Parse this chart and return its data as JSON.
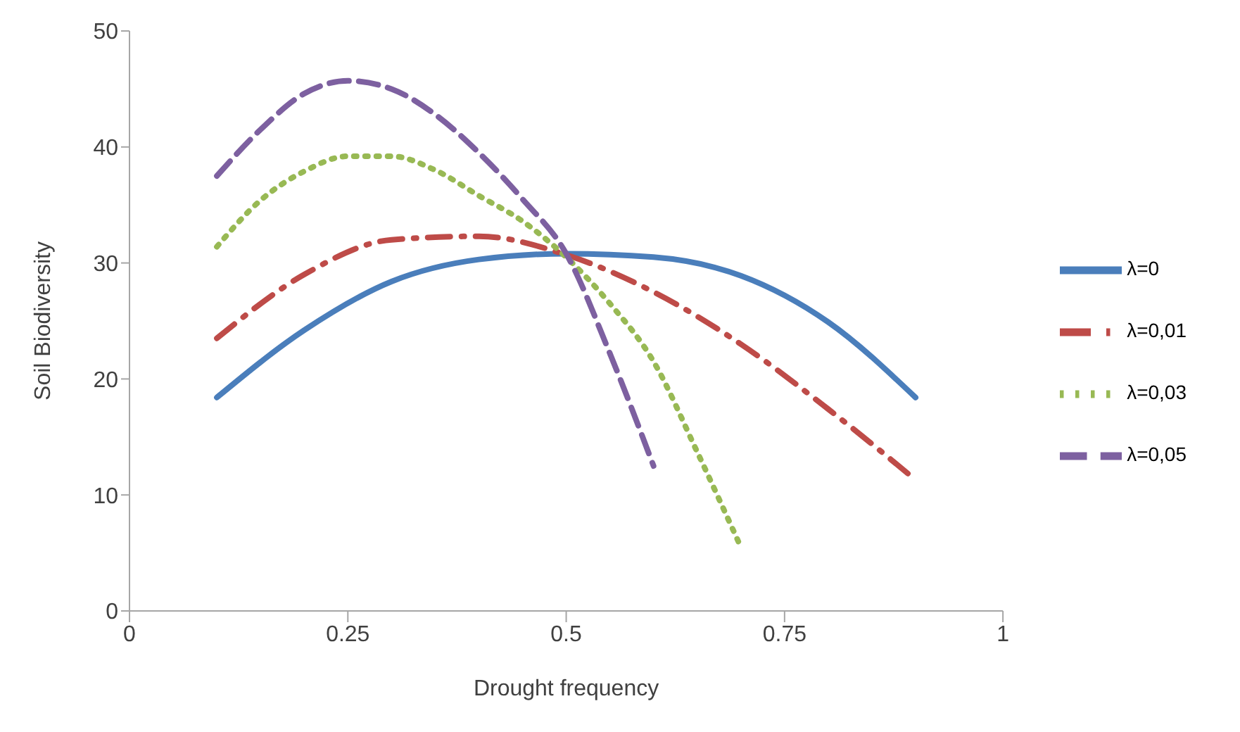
{
  "chart_data": {
    "type": "line",
    "xlabel": "Drought frequency",
    "ylabel": "Soil Biodiversity",
    "xlim": [
      0,
      1
    ],
    "xticks": [
      0,
      0.25,
      0.5,
      0.75,
      1
    ],
    "ylim": [
      0,
      50
    ],
    "yticks": [
      0,
      10,
      20,
      30,
      40,
      50
    ],
    "grid": false,
    "legend": "right",
    "marker": "none",
    "series": [
      {
        "name": "λ=0",
        "color": "#4a7ebb",
        "line_style": "solid",
        "x": [
          0.1,
          0.2,
          0.3,
          0.4,
          0.5,
          0.6,
          0.7,
          0.8,
          0.9
        ],
        "values": [
          18.4,
          24.2,
          28.4,
          30.3,
          30.8,
          30.5,
          28.9,
          24.9,
          18.4
        ]
      },
      {
        "name": "λ=0,01",
        "color": "#be4b48",
        "line_style": "dashdot",
        "x": [
          0.1,
          0.2,
          0.3,
          0.4,
          0.5,
          0.6,
          0.7,
          0.8,
          0.9
        ],
        "values": [
          23.5,
          29.0,
          32.0,
          32.3,
          30.7,
          27.5,
          23.0,
          17.4,
          11.3
        ]
      },
      {
        "name": "λ=0,03",
        "color": "#98b954",
        "line_style": "dotted",
        "x": [
          0.1,
          0.15,
          0.2,
          0.25,
          0.3,
          0.35,
          0.4,
          0.45,
          0.5,
          0.55,
          0.6,
          0.65,
          0.7
        ],
        "values": [
          31.4,
          35.4,
          37.9,
          39.2,
          39.2,
          38.0,
          35.8,
          33.6,
          30.5,
          26.5,
          21.5,
          13.7,
          5.5
        ]
      },
      {
        "name": "λ=0,05",
        "color": "#7d60a0",
        "line_style": "dashed",
        "x": [
          0.1,
          0.15,
          0.2,
          0.25,
          0.3,
          0.35,
          0.4,
          0.45,
          0.5,
          0.55,
          0.6
        ],
        "values": [
          37.5,
          41.5,
          44.6,
          45.7,
          45.0,
          42.8,
          39.5,
          35.5,
          30.8,
          22.2,
          12.5
        ]
      }
    ]
  }
}
